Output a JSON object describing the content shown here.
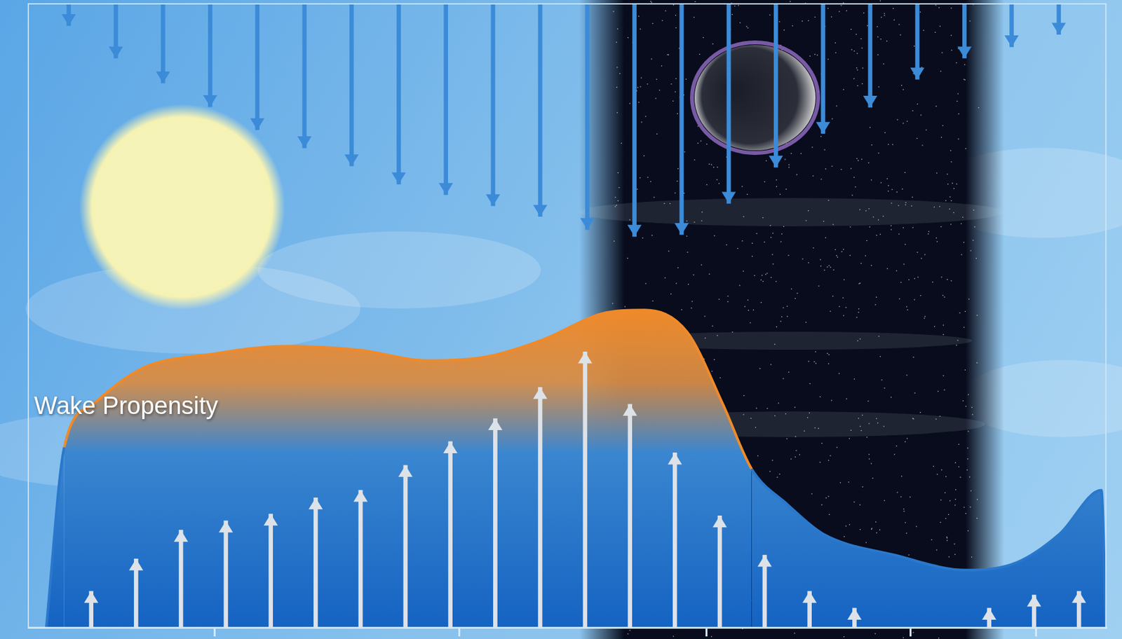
{
  "chart_data": {
    "type": "line",
    "annotation": "Wake Propensity",
    "xlim": [
      0,
      24
    ],
    "xticks": [
      1.4,
      6.9,
      12.3,
      17.9,
      21.4,
      23.5
    ],
    "ylim": [
      0,
      100
    ],
    "y2lim": [
      0,
      100
    ],
    "grid": false,
    "tick_labels": false,
    "series": [
      {
        "type": "line",
        "color": "#ef8a2a",
        "x": [
          0.4,
          0.8,
          1.44,
          2.55,
          4.15,
          5.74,
          7.34,
          8.93,
          10.2,
          11.48,
          12.76,
          13.72,
          14.67,
          15.47,
          16.11,
          16.91,
          17.7,
          19.3,
          20.89,
          22.01,
          22.97,
          23.9,
          24
        ],
        "values": [
          0,
          28.9,
          35.8,
          41.6,
          43.9,
          45.1,
          44.5,
          42.8,
          43.4,
          46.2,
          50.3,
          50.9,
          47.4,
          35.8,
          25.4,
          19.7,
          15.0,
          11.6,
          9.2,
          10.4,
          15.0,
          22,
          0
        ]
      },
      {
        "type": "bar",
        "color": "#dde2e8",
        "x": [
          1.4,
          2.4,
          3.4,
          4.4,
          5.4,
          6.4,
          7.4,
          8.4,
          9.4,
          10.4,
          11.4,
          12.4,
          13.4,
          14.4,
          15.4,
          16.4,
          17.4,
          18.4,
          19.4,
          20.4,
          21.4,
          22.4,
          23.4
        ],
        "values": [
          5.8,
          11,
          15.6,
          17.1,
          18.2,
          20.8,
          22,
          26,
          29.8,
          33.5,
          38.5,
          44.2,
          35.8,
          28,
          17.9,
          11.6,
          5.8,
          3.1,
          null,
          null,
          3.1,
          5.2,
          5.8
        ]
      },
      {
        "type": "bar",
        "color": "#3b8bd8",
        "axis": "y2",
        "x": [
          0.9,
          1.95,
          3.0,
          4.05,
          5.1,
          6.15,
          7.2,
          8.25,
          9.3,
          10.35,
          11.4,
          12.45,
          13.5,
          14.55,
          15.6,
          16.65,
          17.7,
          18.75,
          19.8,
          20.85,
          21.9,
          22.95
        ],
        "values": [
          3.5,
          8.7,
          12.7,
          16.5,
          20.2,
          23.1,
          26,
          28.9,
          30.6,
          32.4,
          34.1,
          36.2,
          37.3,
          37,
          32,
          26.2,
          20.8,
          16.6,
          12.1,
          8.7,
          6.9,
          4.9
        ]
      }
    ]
  }
}
